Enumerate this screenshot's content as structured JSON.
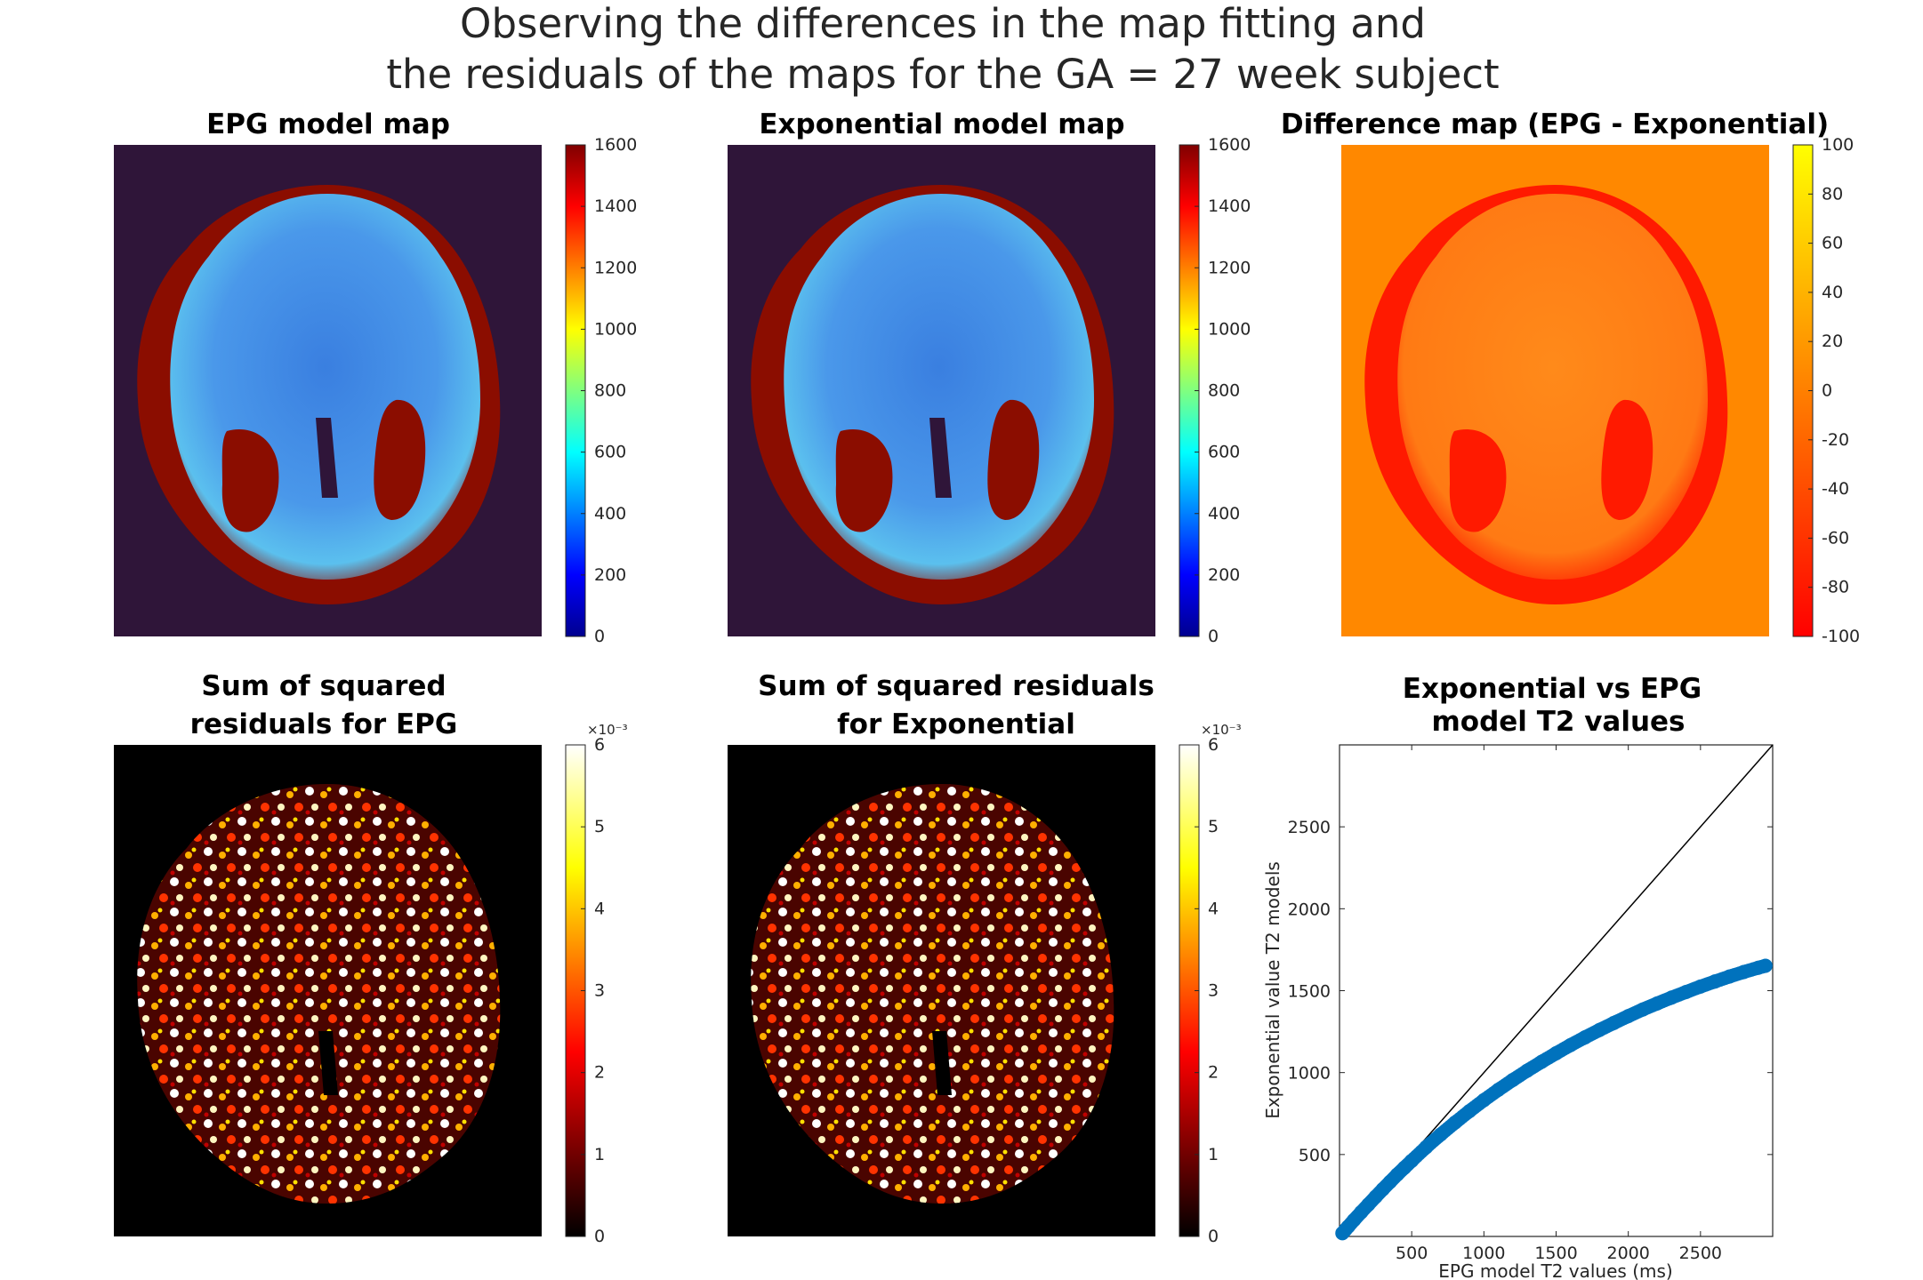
{
  "suptitle": {
    "line1": "Observing the differences in the map fitting and",
    "line2": "the residuals of the maps for the GA = 27 week subject"
  },
  "colors": {
    "background_dark_blue": "#2f1539",
    "background_orange": "#ff8800",
    "background_black": "#000000",
    "scatter_blue": "#0072bd",
    "identity_line": "#000000"
  },
  "chart_data": [
    {
      "type": "heatmap",
      "title": "EPG model map",
      "colormap": "jet",
      "clim": [
        0,
        1600
      ],
      "colorbar_ticks": [
        "0",
        "200",
        "400",
        "600",
        "800",
        "1000",
        "1200",
        "1400",
        "1600"
      ],
      "colorbar_exponent": ""
    },
    {
      "type": "heatmap",
      "title": "Exponential model map",
      "colormap": "jet",
      "clim": [
        0,
        1600
      ],
      "colorbar_ticks": [
        "0",
        "200",
        "400",
        "600",
        "800",
        "1000",
        "1200",
        "1400",
        "1600"
      ],
      "colorbar_exponent": ""
    },
    {
      "type": "heatmap",
      "title": "Difference map (EPG - Exponential)",
      "colormap": "autumn",
      "clim": [
        -100,
        100
      ],
      "colorbar_ticks": [
        "-100",
        "-80",
        "-60",
        "-40",
        "-20",
        "0",
        "20",
        "40",
        "60",
        "80",
        "100"
      ],
      "colorbar_exponent": ""
    },
    {
      "type": "heatmap",
      "title_line1": "Sum of squared",
      "title_line2": "residuals for EPG",
      "colormap": "hot",
      "clim": [
        0,
        6
      ],
      "colorbar_ticks": [
        "0",
        "1",
        "2",
        "3",
        "4",
        "5",
        "6"
      ],
      "colorbar_exponent": "×10⁻³"
    },
    {
      "type": "heatmap",
      "title_line1": "Sum of squared residuals",
      "title_line2": "for Exponential",
      "colormap": "hot",
      "clim": [
        0,
        6
      ],
      "colorbar_ticks": [
        "0",
        "1",
        "2",
        "3",
        "4",
        "5",
        "6"
      ],
      "colorbar_exponent": "×10⁻³"
    },
    {
      "type": "scatter",
      "title_line1": "Exponential vs EPG",
      "title_line2": "model T2 values",
      "xlabel": "EPG model T2 values (ms)",
      "ylabel": "Exponential value T2 models",
      "xlim": [
        0,
        3000
      ],
      "ylim": [
        0,
        3000
      ],
      "xticks": [
        500,
        1000,
        1500,
        2000,
        2500
      ],
      "yticks": [
        500,
        1000,
        1500,
        2000,
        2500
      ],
      "identity_line": true,
      "series": [
        {
          "name": "T2 values",
          "x": [
            20,
            40,
            60,
            100,
            150,
            200,
            250,
            300,
            350,
            400,
            450,
            500,
            600,
            700,
            800,
            900,
            1000,
            1100,
            1200,
            1300,
            1400,
            1500,
            1600,
            1700,
            1800,
            1900,
            2000,
            2100,
            2200,
            2300,
            2400,
            2500,
            2600,
            2700,
            2800,
            2900,
            2950
          ],
          "y": [
            20,
            40,
            60,
            100,
            148,
            195,
            242,
            288,
            333,
            378,
            420,
            462,
            545,
            622,
            695,
            765,
            832,
            895,
            955,
            1012,
            1066,
            1118,
            1168,
            1215,
            1260,
            1303,
            1345,
            1385,
            1422,
            1458,
            1492,
            1525,
            1556,
            1586,
            1614,
            1640,
            1652
          ]
        }
      ]
    }
  ]
}
